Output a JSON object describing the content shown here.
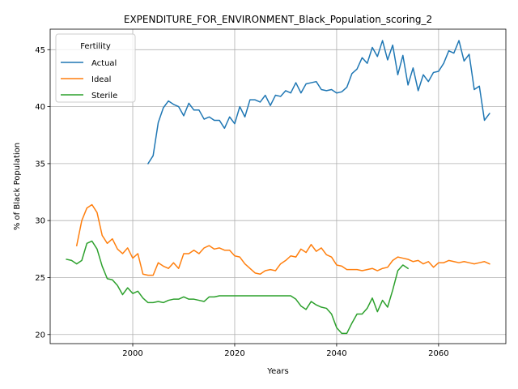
{
  "chart_data": {
    "type": "line",
    "title": "EXPENDITURE_FOR_ENVIRONMENT_Black_Population_scoring_2",
    "xlabel": "Years",
    "ylabel": "% of Black Population",
    "xlim": [
      1983.8,
      2073.2
    ],
    "ylim": [
      19.2,
      46.8
    ],
    "xticks": [
      2000,
      2020,
      2040,
      2060
    ],
    "yticks": [
      20,
      25,
      30,
      35,
      40,
      45
    ],
    "grid": true,
    "legend": {
      "title": "Fertility",
      "position": "top-left"
    },
    "series": [
      {
        "name": "Actual",
        "color": "#1f77b4",
        "x": [
          2003,
          2004,
          2005,
          2006,
          2007,
          2008,
          2009,
          2010,
          2011,
          2012,
          2013,
          2014,
          2015,
          2016,
          2017,
          2018,
          2019,
          2020,
          2021,
          2022,
          2023,
          2024,
          2025,
          2026,
          2027,
          2028,
          2029,
          2030,
          2031,
          2032,
          2033,
          2034,
          2035,
          2036,
          2037,
          2038,
          2039,
          2040,
          2041,
          2042,
          2043,
          2044,
          2045,
          2046,
          2047,
          2048,
          2049,
          2050,
          2051,
          2052,
          2053,
          2054,
          2055,
          2056,
          2057,
          2058,
          2059,
          2060,
          2061,
          2062,
          2063,
          2064,
          2065,
          2066,
          2067,
          2068,
          2069,
          2070
        ],
        "values": [
          35.0,
          35.7,
          38.6,
          39.9,
          40.5,
          40.2,
          40.0,
          39.2,
          40.3,
          39.7,
          39.7,
          38.9,
          39.1,
          38.8,
          38.8,
          38.1,
          39.1,
          38.5,
          40.0,
          39.1,
          40.6,
          40.6,
          40.4,
          41.0,
          40.1,
          41.0,
          40.9,
          41.4,
          41.2,
          42.1,
          41.2,
          42.0,
          42.1,
          42.2,
          41.5,
          41.4,
          41.5,
          41.2,
          41.3,
          41.7,
          42.9,
          43.3,
          44.3,
          43.8,
          45.2,
          44.4,
          45.8,
          44.1,
          45.4,
          42.8,
          44.5,
          41.9,
          43.4,
          41.4,
          42.8,
          42.2,
          43.0,
          43.1,
          43.8,
          44.9,
          44.7,
          45.8,
          44.0,
          44.6,
          41.5,
          41.8,
          38.8,
          39.4
        ]
      },
      {
        "name": "Ideal",
        "color": "#ff7f0e",
        "x": [
          1989,
          1990,
          1991,
          1992,
          1993,
          1994,
          1995,
          1996,
          1997,
          1998,
          1999,
          2000,
          2001,
          2002,
          2003,
          2004,
          2005,
          2006,
          2007,
          2008,
          2009,
          2010,
          2011,
          2012,
          2013,
          2014,
          2015,
          2016,
          2017,
          2018,
          2019,
          2020,
          2021,
          2022,
          2023,
          2024,
          2025,
          2026,
          2027,
          2028,
          2029,
          2030,
          2031,
          2032,
          2033,
          2034,
          2035,
          2036,
          2037,
          2038,
          2039,
          2040,
          2041,
          2042,
          2043,
          2044,
          2045,
          2046,
          2047,
          2048,
          2049,
          2050,
          2051,
          2052,
          2053,
          2054,
          2055,
          2056,
          2057,
          2058,
          2059,
          2060,
          2061,
          2062,
          2063,
          2064,
          2065,
          2066,
          2067,
          2068,
          2069,
          2070
        ],
        "values": [
          27.8,
          30.0,
          31.1,
          31.4,
          30.7,
          28.7,
          28.0,
          28.4,
          27.5,
          27.1,
          27.6,
          26.7,
          27.1,
          25.3,
          25.2,
          25.2,
          26.3,
          26.0,
          25.8,
          26.3,
          25.8,
          27.1,
          27.1,
          27.4,
          27.1,
          27.6,
          27.8,
          27.5,
          27.6,
          27.4,
          27.4,
          26.9,
          26.8,
          26.2,
          25.8,
          25.4,
          25.3,
          25.6,
          25.7,
          25.6,
          26.2,
          26.5,
          26.9,
          26.8,
          27.5,
          27.2,
          27.9,
          27.3,
          27.6,
          27.0,
          26.8,
          26.1,
          26.0,
          25.7,
          25.7,
          25.7,
          25.6,
          25.7,
          25.8,
          25.6,
          25.8,
          25.9,
          26.5,
          26.8,
          26.7,
          26.6,
          26.4,
          26.5,
          26.2,
          26.4,
          25.9,
          26.3,
          26.3,
          26.5,
          26.4,
          26.3,
          26.4,
          26.3,
          26.2,
          26.3,
          26.4,
          26.2
        ]
      },
      {
        "name": "Sterile",
        "color": "#2ca02c",
        "x": [
          1987,
          1988,
          1989,
          1990,
          1991,
          1992,
          1993,
          1994,
          1995,
          1996,
          1997,
          1998,
          1999,
          2000,
          2001,
          2002,
          2003,
          2004,
          2005,
          2006,
          2007,
          2008,
          2009,
          2010,
          2011,
          2012,
          2013,
          2014,
          2015,
          2016,
          2017,
          2018,
          2019,
          2020,
          2021,
          2022,
          2023,
          2024,
          2025,
          2026,
          2027,
          2028,
          2029,
          2030,
          2031,
          2032,
          2033,
          2034,
          2035,
          2036,
          2037,
          2038,
          2039,
          2040,
          2041,
          2042,
          2043,
          2044,
          2045,
          2046,
          2047,
          2048,
          2049,
          2050,
          2051,
          2052,
          2053,
          2054
        ],
        "values": [
          26.6,
          26.5,
          26.2,
          26.5,
          28.0,
          28.2,
          27.5,
          26.0,
          24.9,
          24.8,
          24.3,
          23.5,
          24.1,
          23.6,
          23.8,
          23.2,
          22.8,
          22.8,
          22.9,
          22.8,
          23.0,
          23.1,
          23.1,
          23.3,
          23.1,
          23.1,
          23.0,
          22.9,
          23.3,
          23.3,
          23.4,
          23.4,
          23.4,
          23.4,
          23.4,
          23.4,
          23.4,
          23.4,
          23.4,
          23.4,
          23.4,
          23.4,
          23.4,
          23.4,
          23.4,
          23.1,
          22.5,
          22.2,
          22.9,
          22.6,
          22.4,
          22.3,
          21.8,
          20.6,
          20.1,
          20.1,
          21.0,
          21.8,
          21.8,
          22.3,
          23.2,
          22.0,
          23.0,
          22.4,
          23.9,
          25.6,
          26.1,
          25.8
        ]
      }
    ]
  }
}
